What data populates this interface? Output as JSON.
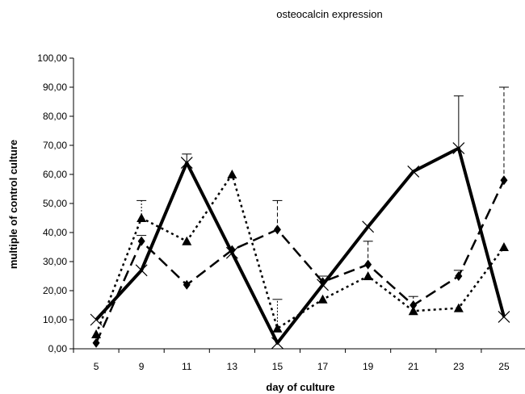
{
  "chart_data": {
    "type": "line",
    "title": "osteocalcin expression",
    "xlabel": "day of culture",
    "ylabel": "multiple of control culture",
    "categories": [
      "5",
      "9",
      "11",
      "13",
      "15",
      "17",
      "19",
      "21",
      "23",
      "25"
    ],
    "ylim": [
      0,
      100
    ],
    "yticks": [
      "0,00",
      "10,00",
      "20,00",
      "30,00",
      "40,00",
      "50,00",
      "60,00",
      "70,00",
      "80,00",
      "90,00",
      "100,00"
    ],
    "grid": false,
    "legend": "none",
    "series": [
      {
        "style": "solid",
        "marker": "x",
        "values": [
          10,
          27,
          64,
          33,
          2,
          22,
          42,
          61,
          69,
          11
        ],
        "error_upper": [
          null,
          null,
          67,
          null,
          null,
          null,
          null,
          null,
          87,
          null
        ]
      },
      {
        "style": "dash",
        "marker": "diamond",
        "values": [
          2,
          37,
          22,
          34,
          41,
          23,
          29,
          15,
          25,
          58
        ],
        "error_upper": [
          null,
          39,
          null,
          null,
          51,
          25,
          37,
          18,
          27,
          90
        ]
      },
      {
        "style": "dot",
        "marker": "triangle",
        "values": [
          5,
          45,
          37,
          60,
          7,
          17,
          25,
          13,
          14,
          35
        ],
        "error_upper": [
          null,
          51,
          null,
          null,
          17,
          null,
          null,
          null,
          null,
          null
        ]
      }
    ]
  }
}
